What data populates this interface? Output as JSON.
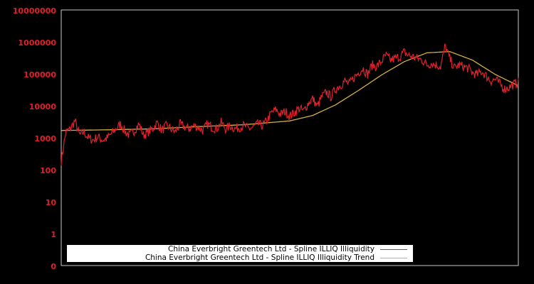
{
  "chart_data": {
    "type": "line",
    "title": "",
    "xlabel": "",
    "ylabel": "",
    "y_scale": "log",
    "y_ticks": [
      "10000000",
      "1000000",
      "100000",
      "10000",
      "1000",
      "100",
      "10",
      "1",
      "0"
    ],
    "ylim": [
      0,
      10000000
    ],
    "grid": false,
    "legend_position": "bottom-left inside plot",
    "series": [
      {
        "name": "China Everbright Greentech Ltd - Spline ILLIQ Illiquidity",
        "color": "#e0202a",
        "approx_points_log10": [
          [
            0.0,
            2.3
          ],
          [
            0.01,
            3.2
          ],
          [
            0.02,
            3.3
          ],
          [
            0.03,
            3.55
          ],
          [
            0.04,
            3.1
          ],
          [
            0.05,
            3.2
          ],
          [
            0.06,
            3.0
          ],
          [
            0.07,
            2.95
          ],
          [
            0.08,
            3.05
          ],
          [
            0.09,
            2.95
          ],
          [
            0.1,
            3.0
          ],
          [
            0.11,
            3.15
          ],
          [
            0.12,
            3.3
          ],
          [
            0.13,
            3.45
          ],
          [
            0.14,
            3.2
          ],
          [
            0.15,
            3.1
          ],
          [
            0.16,
            3.25
          ],
          [
            0.17,
            3.45
          ],
          [
            0.18,
            3.1
          ],
          [
            0.19,
            3.2
          ],
          [
            0.2,
            3.3
          ],
          [
            0.21,
            3.5
          ],
          [
            0.22,
            3.25
          ],
          [
            0.23,
            3.4
          ],
          [
            0.24,
            3.3
          ],
          [
            0.25,
            3.2
          ],
          [
            0.26,
            3.45
          ],
          [
            0.27,
            3.35
          ],
          [
            0.28,
            3.3
          ],
          [
            0.29,
            3.4
          ],
          [
            0.3,
            3.35
          ],
          [
            0.31,
            3.25
          ],
          [
            0.32,
            3.45
          ],
          [
            0.33,
            3.35
          ],
          [
            0.34,
            3.3
          ],
          [
            0.35,
            3.5
          ],
          [
            0.36,
            3.3
          ],
          [
            0.37,
            3.4
          ],
          [
            0.38,
            3.3
          ],
          [
            0.39,
            3.35
          ],
          [
            0.4,
            3.4
          ],
          [
            0.41,
            3.3
          ],
          [
            0.42,
            3.35
          ],
          [
            0.43,
            3.45
          ],
          [
            0.44,
            3.4
          ],
          [
            0.45,
            3.55
          ],
          [
            0.46,
            3.8
          ],
          [
            0.47,
            3.9
          ],
          [
            0.48,
            3.75
          ],
          [
            0.49,
            3.85
          ],
          [
            0.5,
            3.7
          ],
          [
            0.51,
            3.8
          ],
          [
            0.52,
            3.95
          ],
          [
            0.53,
            3.85
          ],
          [
            0.54,
            4.1
          ],
          [
            0.55,
            4.25
          ],
          [
            0.56,
            4.0
          ],
          [
            0.57,
            4.3
          ],
          [
            0.58,
            4.45
          ],
          [
            0.59,
            4.3
          ],
          [
            0.6,
            4.55
          ],
          [
            0.61,
            4.65
          ],
          [
            0.62,
            4.8
          ],
          [
            0.63,
            4.7
          ],
          [
            0.64,
            4.9
          ],
          [
            0.65,
            5.05
          ],
          [
            0.66,
            5.2
          ],
          [
            0.67,
            5.0
          ],
          [
            0.68,
            5.3
          ],
          [
            0.69,
            5.25
          ],
          [
            0.7,
            5.4
          ],
          [
            0.71,
            5.6
          ],
          [
            0.72,
            5.45
          ],
          [
            0.73,
            5.5
          ],
          [
            0.74,
            5.55
          ],
          [
            0.75,
            5.7
          ],
          [
            0.76,
            5.6
          ],
          [
            0.77,
            5.55
          ],
          [
            0.78,
            5.5
          ],
          [
            0.79,
            5.45
          ],
          [
            0.8,
            5.3
          ],
          [
            0.81,
            5.35
          ],
          [
            0.82,
            5.3
          ],
          [
            0.83,
            5.25
          ],
          [
            0.84,
            5.9
          ],
          [
            0.85,
            5.5
          ],
          [
            0.86,
            5.2
          ],
          [
            0.87,
            5.3
          ],
          [
            0.88,
            5.25
          ],
          [
            0.89,
            5.2
          ],
          [
            0.9,
            5.05
          ],
          [
            0.91,
            5.0
          ],
          [
            0.92,
            5.1
          ],
          [
            0.93,
            4.95
          ],
          [
            0.94,
            4.8
          ],
          [
            0.95,
            4.85
          ],
          [
            0.96,
            4.7
          ],
          [
            0.97,
            4.55
          ],
          [
            0.98,
            4.6
          ],
          [
            0.99,
            4.7
          ],
          [
            1.0,
            4.75
          ]
        ]
      },
      {
        "name": "China Everbright Greentech Ltd - Spline ILLIQ Illiquidity Trend",
        "color": "#d4b040",
        "approx_points_log10": [
          [
            0.0,
            3.25
          ],
          [
            0.1,
            3.27
          ],
          [
            0.2,
            3.3
          ],
          [
            0.3,
            3.37
          ],
          [
            0.4,
            3.43
          ],
          [
            0.5,
            3.55
          ],
          [
            0.55,
            3.72
          ],
          [
            0.6,
            4.05
          ],
          [
            0.65,
            4.5
          ],
          [
            0.7,
            4.98
          ],
          [
            0.75,
            5.4
          ],
          [
            0.8,
            5.68
          ],
          [
            0.85,
            5.72
          ],
          [
            0.9,
            5.45
          ],
          [
            0.95,
            5.0
          ],
          [
            1.0,
            4.65
          ]
        ]
      }
    ]
  },
  "legend": {
    "items": [
      {
        "label": "China Everbright Greentech Ltd - Spline ILLIQ Illiquidity",
        "color": "#e0202a"
      },
      {
        "label": "China Everbright Greentech Ltd - Spline ILLIQ Illiquidity Trend",
        "color": "#d4b040"
      }
    ]
  }
}
